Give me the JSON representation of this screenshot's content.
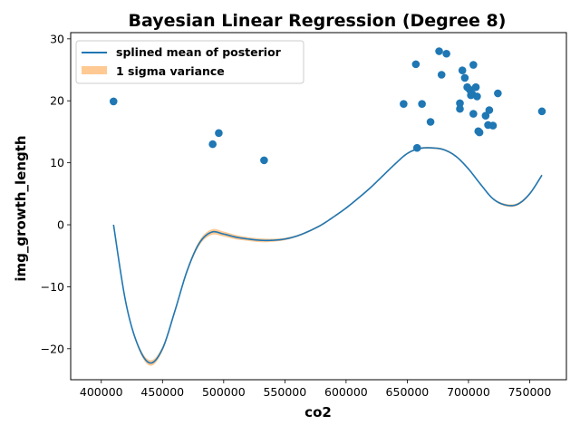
{
  "chart_data": {
    "type": "scatter",
    "title": "Bayesian Linear Regression (Degree 8)",
    "xlabel": "co2",
    "ylabel": "img_growth_length",
    "xlim": [
      375000,
      780000
    ],
    "ylim": [
      -25,
      31
    ],
    "x_ticks": [
      400000,
      450000,
      500000,
      550000,
      600000,
      650000,
      700000,
      750000
    ],
    "x_tick_labels": [
      "400000",
      "450000",
      "500000",
      "550000",
      "600000",
      "650000",
      "700000",
      "750000"
    ],
    "y_ticks": [
      -20,
      -10,
      0,
      10,
      20,
      30
    ],
    "y_tick_labels": [
      "−20",
      "−10",
      "0",
      "10",
      "20",
      "30"
    ],
    "legend": {
      "position": "top-left",
      "entries": [
        {
          "label": "splined mean of posterior",
          "kind": "line",
          "color": "#1f77b4"
        },
        {
          "label": "1 sigma variance",
          "kind": "patch",
          "color": "#ffbb78"
        }
      ]
    },
    "colors": {
      "points": "#1f77b4",
      "mean_line": "#1f77b4",
      "variance_band": "#ffbb78"
    },
    "series": [
      {
        "kind": "scatter",
        "x": [
          410000,
          491000,
          496000,
          533000,
          647000,
          657000,
          658000,
          662000,
          669000,
          676000,
          678000,
          682000,
          693000,
          693000,
          695000,
          697000,
          699000,
          701000,
          702000,
          703000,
          704000,
          704000,
          706000,
          707000,
          708000,
          709000,
          714000,
          716000,
          717000,
          720000,
          724000,
          760000
        ],
        "y": [
          19.9,
          13.0,
          14.8,
          10.4,
          19.5,
          25.9,
          12.4,
          19.5,
          16.6,
          28.0,
          24.2,
          27.6,
          19.6,
          18.7,
          24.9,
          23.7,
          22.2,
          21.8,
          20.9,
          21.1,
          17.9,
          25.8,
          22.2,
          20.7,
          15.1,
          14.9,
          17.6,
          16.1,
          18.5,
          16.0,
          21.2,
          18.3
        ]
      },
      {
        "kind": "line",
        "x": [
          410000,
          420000,
          430000,
          440000,
          450000,
          460000,
          470000,
          480000,
          490000,
          500000,
          510000,
          520000,
          530000,
          540000,
          550000,
          560000,
          570000,
          580000,
          590000,
          600000,
          610000,
          620000,
          630000,
          640000,
          650000,
          660000,
          670000,
          680000,
          690000,
          700000,
          710000,
          720000,
          730000,
          740000,
          750000,
          760000
        ],
        "y": [
          0.0,
          -12.5,
          -19.5,
          -22.3,
          -20.0,
          -14.0,
          -7.5,
          -3.0,
          -1.2,
          -1.5,
          -2.0,
          -2.3,
          -2.5,
          -2.5,
          -2.3,
          -1.8,
          -1.0,
          0.0,
          1.3,
          2.7,
          4.3,
          6.0,
          7.9,
          9.8,
          11.5,
          12.3,
          12.4,
          12.1,
          11.0,
          9.0,
          6.5,
          4.2,
          3.2,
          3.3,
          5.0,
          8.0
        ]
      },
      {
        "kind": "band",
        "x": [
          410000,
          420000,
          430000,
          440000,
          450000,
          460000,
          470000,
          480000,
          490000,
          500000,
          510000,
          520000,
          530000,
          540000,
          550000,
          560000,
          570000,
          580000,
          590000,
          600000,
          610000,
          620000,
          630000,
          640000,
          650000,
          660000,
          670000,
          680000,
          690000,
          700000,
          710000,
          720000,
          730000,
          740000,
          750000,
          760000
        ],
        "sigma": [
          0.15,
          0.25,
          0.35,
          0.45,
          0.4,
          0.35,
          0.35,
          0.4,
          0.45,
          0.4,
          0.35,
          0.3,
          0.3,
          0.25,
          0.2,
          0.15,
          0.15,
          0.15,
          0.15,
          0.15,
          0.15,
          0.15,
          0.15,
          0.15,
          0.15,
          0.15,
          0.15,
          0.15,
          0.15,
          0.15,
          0.15,
          0.15,
          0.2,
          0.2,
          0.2,
          0.2
        ]
      }
    ]
  }
}
